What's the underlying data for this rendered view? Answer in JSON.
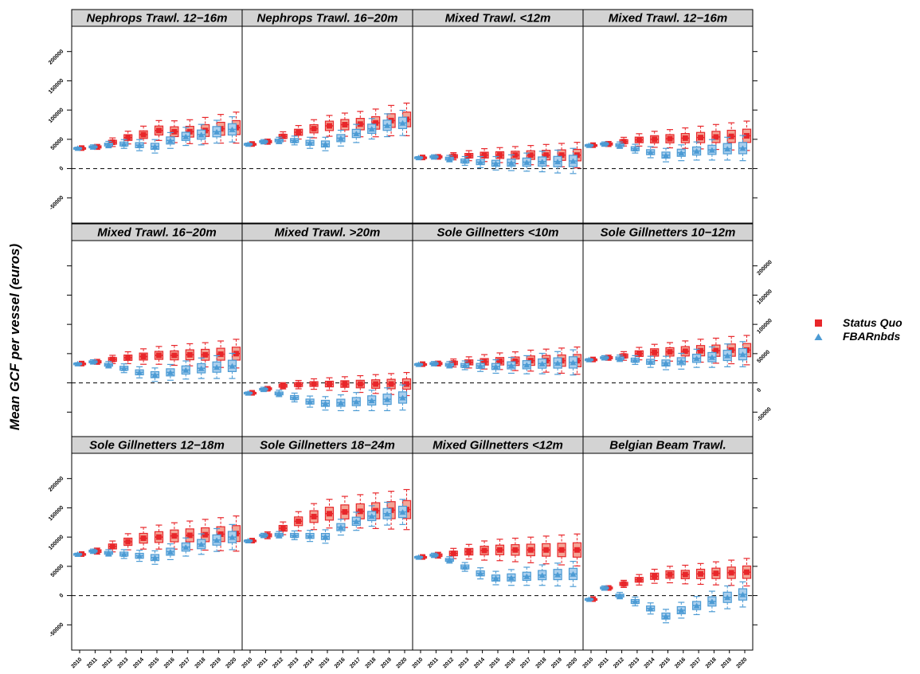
{
  "chart_data": {
    "type": "boxplot",
    "ylabel": "Mean GCF per vessel (euros)",
    "years": [
      "2010",
      "2011",
      "2012",
      "2013",
      "2014",
      "2015",
      "2016",
      "2017",
      "2018",
      "2019",
      "2020"
    ],
    "y_ticks": [
      -50000,
      0,
      50000,
      100000,
      150000,
      200000
    ],
    "y_tick_labels": [
      "-50000",
      "0",
      "50000",
      "100000",
      "150000",
      "200000"
    ],
    "ylim": [
      -85000,
      235000
    ],
    "legend": {
      "position": "right",
      "entries": [
        {
          "label": "Status Quo",
          "color": "#e8262a",
          "marker": "square"
        },
        {
          "label": "FBARnbds",
          "color": "#4c9bd4",
          "marker": "triangle"
        }
      ]
    },
    "colors": {
      "status_quo": "#e8262a",
      "status_quo_fill": "#f4a596",
      "fbar": "#4c9bd4",
      "fbar_fill": "#a9cfee",
      "strip": "#d3d3d3"
    },
    "panels": [
      {
        "title": "Nephrops Trawl. 12−16m",
        "status_quo": [
          35000,
          37000,
          45000,
          53000,
          58000,
          65000,
          63000,
          63000,
          65000,
          68000,
          70000
        ],
        "fbar": [
          35000,
          37000,
          41000,
          42000,
          40000,
          38000,
          48000,
          55000,
          58000,
          63000,
          67000
        ]
      },
      {
        "title": "Nephrops Trawl. 16−20m",
        "status_quo": [
          42000,
          46000,
          55000,
          62000,
          68000,
          73000,
          75000,
          76000,
          78000,
          82000,
          84000
        ],
        "fbar": [
          42000,
          46000,
          48000,
          48000,
          44000,
          42000,
          52000,
          60000,
          68000,
          74000,
          78000
        ]
      },
      {
        "title": "Mixed Trawl. <12m",
        "status_quo": [
          19000,
          20000,
          21000,
          22000,
          23000,
          23000,
          23000,
          23000,
          23000,
          23000,
          23000
        ],
        "fbar": [
          19000,
          20000,
          17000,
          13000,
          11000,
          9000,
          10000,
          11000,
          12000,
          12000,
          13000
        ]
      },
      {
        "title": "Mixed Trawl. 12−16m",
        "status_quo": [
          40000,
          42000,
          46000,
          49000,
          50000,
          51000,
          52000,
          53000,
          54000,
          55000,
          56000
        ],
        "fbar": [
          40000,
          42000,
          40000,
          34000,
          28000,
          23000,
          27000,
          30000,
          32000,
          34000,
          35000
        ]
      },
      {
        "title": "Mixed Trawl. 16−20m",
        "status_quo": [
          33000,
          36000,
          40000,
          43000,
          45000,
          47000,
          47000,
          48000,
          48000,
          49000,
          50000
        ],
        "fbar": [
          33000,
          36000,
          31000,
          25000,
          18000,
          14000,
          18000,
          22000,
          25000,
          27000,
          29000
        ]
      },
      {
        "title": "Mixed Trawl. >20m",
        "status_quo": [
          -17000,
          -10000,
          -5000,
          -3000,
          -2000,
          -2000,
          -2000,
          -2000,
          -2000,
          -2000,
          -2000
        ],
        "fbar": [
          -17000,
          -11000,
          -18000,
          -25000,
          -32000,
          -35000,
          -34000,
          -32000,
          -30000,
          -28000,
          -25000
        ]
      },
      {
        "title": "Sole Gillnetters <10m",
        "status_quo": [
          32000,
          33000,
          34000,
          35000,
          36000,
          37000,
          37000,
          38000,
          38000,
          38000,
          38000
        ],
        "fbar": [
          32000,
          33000,
          31000,
          30000,
          29000,
          28000,
          30000,
          31000,
          33000,
          34000,
          35000
        ]
      },
      {
        "title": "Sole Gillnetters 10−12m",
        "status_quo": [
          40000,
          43000,
          46000,
          50000,
          52000,
          53000,
          54000,
          55000,
          55000,
          56000,
          56000
        ],
        "fbar": [
          40000,
          43000,
          42000,
          39000,
          36000,
          34000,
          37000,
          42000,
          44000,
          47000,
          49000
        ]
      },
      {
        "title": "Sole Gillnetters 12−18m",
        "status_quo": [
          71000,
          76000,
          84000,
          92000,
          98000,
          100000,
          102000,
          103000,
          104000,
          105000,
          106000
        ],
        "fbar": [
          71000,
          76000,
          73000,
          71000,
          68000,
          65000,
          75000,
          83000,
          88000,
          95000,
          100000
        ]
      },
      {
        "title": "Sole Gillnetters 18−24m",
        "status_quo": [
          94000,
          103000,
          115000,
          127000,
          135000,
          140000,
          143000,
          144000,
          145000,
          146000,
          147000
        ],
        "fbar": [
          94000,
          103000,
          104000,
          103000,
          102000,
          101000,
          117000,
          127000,
          136000,
          140000,
          143000
        ]
      },
      {
        "title": "Mixed Gillnetters <12m",
        "status_quo": [
          66000,
          69000,
          72000,
          75000,
          77000,
          78000,
          78000,
          78000,
          78000,
          78000,
          78000
        ],
        "fbar": [
          66000,
          69000,
          61000,
          49000,
          38000,
          30000,
          31000,
          33000,
          35000,
          36000,
          37000
        ]
      },
      {
        "title": "Belgian Beam Trawl.",
        "status_quo": [
          -6000,
          13000,
          20000,
          27000,
          33000,
          36000,
          36000,
          37000,
          38000,
          39000,
          40000
        ],
        "fbar": [
          -6000,
          13000,
          0,
          -10000,
          -22000,
          -35000,
          -25000,
          -17000,
          -10000,
          -3000,
          2000
        ]
      }
    ]
  }
}
